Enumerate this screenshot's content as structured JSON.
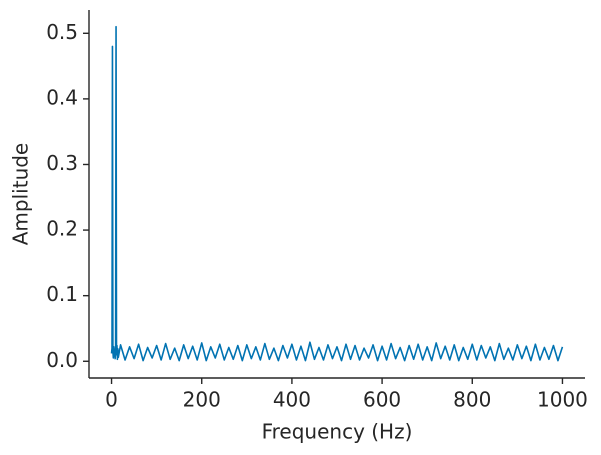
{
  "chart_data": {
    "type": "line",
    "xlabel": "Frequency (Hz)",
    "ylabel": "Amplitude",
    "color": "#0173b2",
    "x": [
      0,
      1,
      2,
      3,
      4,
      5,
      6,
      7,
      8,
      9,
      10,
      11,
      12,
      13,
      14,
      15,
      20,
      30,
      40,
      50,
      60,
      70,
      80,
      90,
      100,
      110,
      120,
      130,
      140,
      150,
      160,
      170,
      180,
      190,
      200,
      210,
      220,
      230,
      240,
      250,
      260,
      270,
      280,
      290,
      300,
      310,
      320,
      330,
      340,
      350,
      360,
      370,
      380,
      390,
      400,
      410,
      420,
      430,
      440,
      450,
      460,
      470,
      480,
      490,
      500,
      510,
      520,
      530,
      540,
      550,
      560,
      570,
      580,
      590,
      600,
      610,
      620,
      630,
      640,
      650,
      660,
      670,
      680,
      690,
      700,
      710,
      720,
      730,
      740,
      750,
      760,
      770,
      780,
      790,
      800,
      810,
      820,
      830,
      840,
      850,
      860,
      870,
      880,
      890,
      900,
      910,
      920,
      930,
      940,
      950,
      960,
      970,
      980,
      990,
      1000
    ],
    "values": [
      0.012,
      0.02,
      0.48,
      0.015,
      0.005,
      0.022,
      0.008,
      0.018,
      0.004,
      0.02,
      0.51,
      0.01,
      0.024,
      0.003,
      0.019,
      0.006,
      0.025,
      0.002,
      0.022,
      0.004,
      0.026,
      0.001,
      0.021,
      0.005,
      0.024,
      0.002,
      0.027,
      0.003,
      0.02,
      0.001,
      0.025,
      0.004,
      0.023,
      0.002,
      0.028,
      0.001,
      0.022,
      0.005,
      0.026,
      0.002,
      0.021,
      0.003,
      0.024,
      0.001,
      0.025,
      0.004,
      0.022,
      0.002,
      0.027,
      0.003,
      0.02,
      0.001,
      0.024,
      0.005,
      0.026,
      0.002,
      0.023,
      0.001,
      0.029,
      0.003,
      0.021,
      0.002,
      0.025,
      0.004,
      0.022,
      0.001,
      0.026,
      0.003,
      0.024,
      0.002,
      0.02,
      0.005,
      0.025,
      0.001,
      0.023,
      0.002,
      0.027,
      0.004,
      0.021,
      0.001,
      0.024,
      0.003,
      0.026,
      0.002,
      0.022,
      0.001,
      0.028,
      0.004,
      0.023,
      0.002,
      0.025,
      0.001,
      0.021,
      0.003,
      0.026,
      0.002,
      0.024,
      0.005,
      0.022,
      0.001,
      0.027,
      0.003,
      0.02,
      0.002,
      0.025,
      0.004,
      0.023,
      0.001,
      0.026,
      0.002,
      0.021,
      0.003,
      0.024,
      0.001,
      0.022
    ],
    "xlim": [
      -50,
      1050
    ],
    "xticks": [
      0,
      200,
      400,
      600,
      800,
      1000
    ],
    "ylim": [
      -0.0255,
      0.5355
    ],
    "yticks": [
      {
        "value": 0,
        "label": "0.0"
      },
      0.1,
      0.2,
      0.3,
      0.4,
      0.5
    ]
  }
}
